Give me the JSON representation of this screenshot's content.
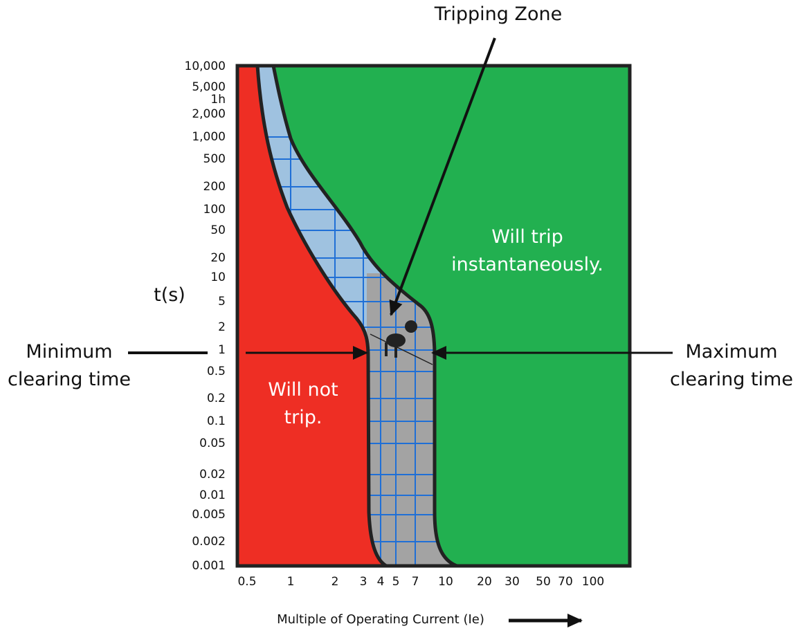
{
  "title": "Tripping Zone",
  "y_axis": {
    "label": "t(s)",
    "ticks": [
      "10,000",
      "5,000",
      "1h",
      "2,000",
      "1,000",
      "500",
      "200",
      "100",
      "50",
      "20",
      "10",
      "5",
      "2",
      "1",
      "0.5",
      "0.2",
      "0.1",
      "0.05",
      "0.02",
      "0.01",
      "0.005",
      "0.002",
      "0.001"
    ]
  },
  "x_axis": {
    "label": "Multiple of Operating Current (Ie)",
    "ticks": [
      "0.5",
      "1",
      "2",
      "3",
      "4",
      "5",
      "7",
      "10",
      "20",
      "30",
      "50",
      "70",
      "100"
    ]
  },
  "regions": {
    "trip": [
      "Will trip",
      "instantaneously."
    ],
    "no_trip": [
      "Will not",
      "trip."
    ]
  },
  "annotations": {
    "minimum": [
      "Minimum",
      "clearing time"
    ],
    "maximum": [
      "Maximum",
      "clearing time"
    ]
  }
}
